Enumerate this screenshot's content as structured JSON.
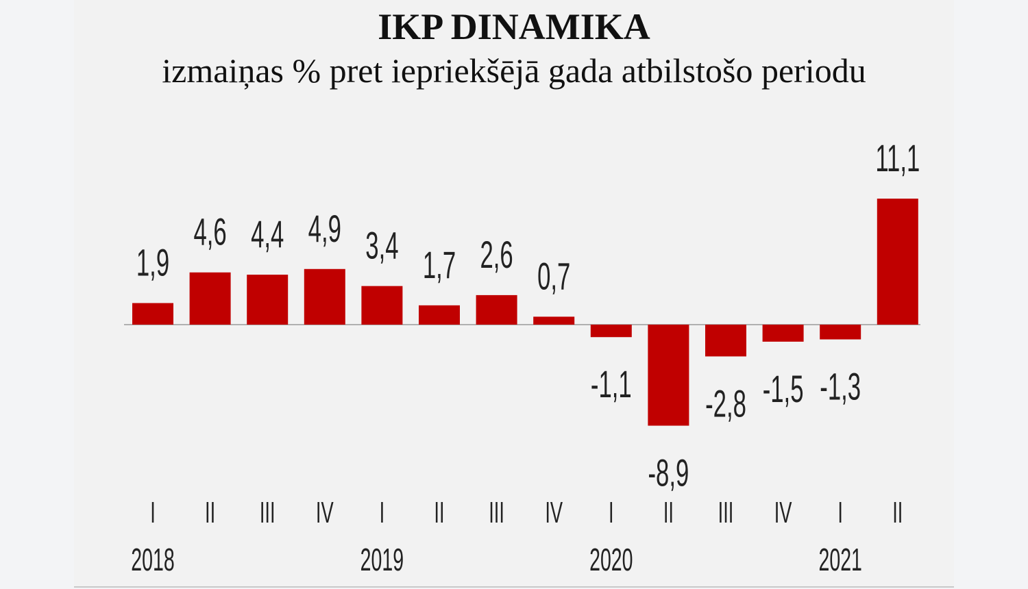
{
  "chart_data": {
    "type": "bar",
    "title": "IKP DINAMIKA",
    "subtitle": "izmaiņas % pret iepriekšējā gada atbilstošo periodu",
    "categories": [
      "I",
      "II",
      "III",
      "IV",
      "I",
      "II",
      "III",
      "IV",
      "I",
      "II",
      "III",
      "IV",
      "I",
      "II"
    ],
    "years": [
      {
        "label": "2018",
        "quarter_index": 0
      },
      {
        "label": "2019",
        "quarter_index": 4
      },
      {
        "label": "2020",
        "quarter_index": 8
      },
      {
        "label": "2021",
        "quarter_index": 12
      }
    ],
    "values": [
      1.9,
      4.6,
      4.4,
      4.9,
      3.4,
      1.7,
      2.6,
      0.7,
      -1.1,
      -8.9,
      -2.8,
      -1.5,
      -1.3,
      11.1
    ],
    "data_labels": [
      "1,9",
      "4,6",
      "4,4",
      "4,9",
      "3,4",
      "1,7",
      "2,6",
      "0,7",
      "-1,1",
      "-8,9",
      "-2,8",
      "-1,5",
      "-1,3",
      "11,1"
    ],
    "bar_color": "#c00000",
    "grid": false,
    "legend": "none"
  }
}
